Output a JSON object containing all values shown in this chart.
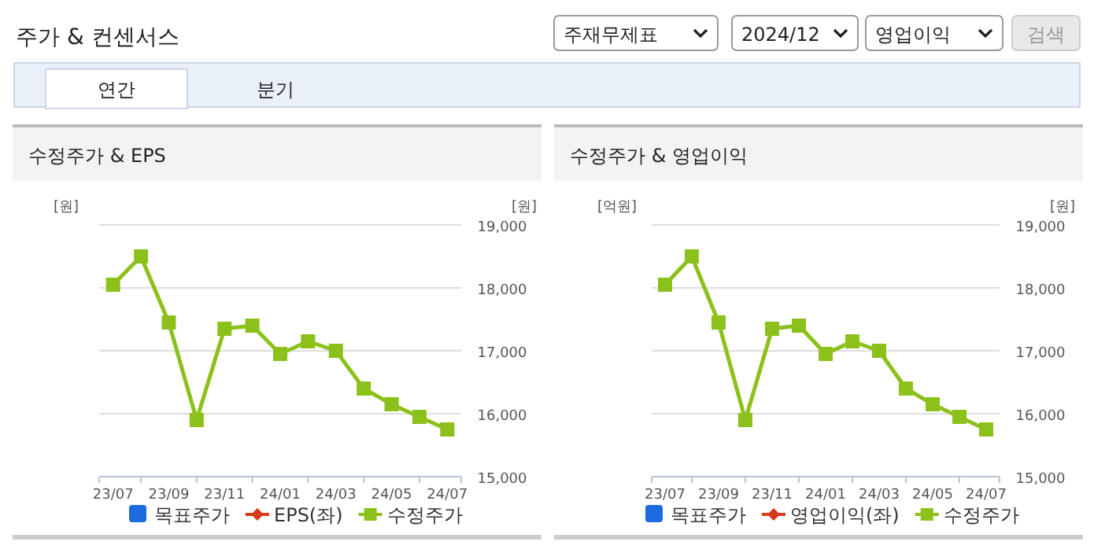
{
  "chart_data": [
    {
      "type": "other",
      "title": "주가 & 컨센서스",
      "annotations": [
        "주재무제표",
        "2024/12",
        "영업이익",
        "검색",
        "연간",
        "분기"
      ]
    },
    {
      "type": "line",
      "title": "수정주가 & EPS",
      "ylabel": "[원]",
      "y2label": "[원]",
      "categories": [
        "23/07",
        null,
        "23/09",
        null,
        "23/11",
        null,
        "24/01",
        null,
        "24/03",
        null,
        "24/05",
        null,
        "24/07"
      ],
      "y2lim": [
        15000,
        19000
      ],
      "y2ticks": [
        {
          "value": 15000,
          "label": "15,000"
        },
        {
          "value": 16000,
          "label": "16,000"
        },
        {
          "value": 17000,
          "label": "17,000"
        },
        {
          "value": 18000,
          "label": "18,000"
        },
        {
          "value": 19000,
          "label": "19,000"
        }
      ],
      "grid": "y",
      "legend": "bottom",
      "marker": "square",
      "series": [
        {
          "name": "목표주가",
          "color": "#1e6be0",
          "type": "bar",
          "values": [
            null,
            null,
            null,
            null,
            null,
            null,
            null,
            null,
            null,
            null,
            null,
            null,
            null
          ]
        },
        {
          "name": "EPS(좌)",
          "color": "#d63a1a",
          "marker": "diamond",
          "values": [
            null,
            null,
            null,
            null,
            null,
            null,
            null,
            null,
            null,
            null,
            null,
            null,
            null
          ]
        },
        {
          "name": "수정주가",
          "color": "#8cc11c",
          "axis": "y2",
          "values": [
            18050,
            18500,
            17450,
            15900,
            17350,
            17400,
            16950,
            17150,
            17000,
            16400,
            16150,
            15950,
            15750
          ]
        }
      ]
    },
    {
      "type": "line",
      "title": "수정주가 & 영업이익",
      "ylabel": "[억원]",
      "y2label": "[원]",
      "categories": [
        "23/07",
        null,
        "23/09",
        null,
        "23/11",
        null,
        "24/01",
        null,
        "24/03",
        null,
        "24/05",
        null,
        "24/07"
      ],
      "y2lim": [
        15000,
        19000
      ],
      "y2ticks": [
        {
          "value": 15000,
          "label": "15,000"
        },
        {
          "value": 16000,
          "label": "16,000"
        },
        {
          "value": 17000,
          "label": "17,000"
        },
        {
          "value": 18000,
          "label": "18,000"
        },
        {
          "value": 19000,
          "label": "19,000"
        }
      ],
      "grid": "y",
      "legend": "bottom",
      "marker": "square",
      "series": [
        {
          "name": "목표주가",
          "color": "#1e6be0",
          "type": "bar",
          "values": [
            null,
            null,
            null,
            null,
            null,
            null,
            null,
            null,
            null,
            null,
            null,
            null,
            null
          ]
        },
        {
          "name": "영업이익(좌)",
          "color": "#d63a1a",
          "marker": "diamond",
          "values": [
            null,
            null,
            null,
            null,
            null,
            null,
            null,
            null,
            null,
            null,
            null,
            null,
            null
          ]
        },
        {
          "name": "수정주가",
          "color": "#8cc11c",
          "axis": "y2",
          "values": [
            18050,
            18500,
            17450,
            15900,
            17350,
            17400,
            16950,
            17150,
            17000,
            16400,
            16150,
            15950,
            15750
          ]
        }
      ]
    }
  ]
}
